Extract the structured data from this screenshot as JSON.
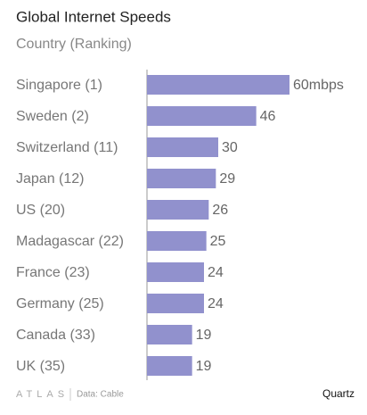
{
  "chart_data": {
    "type": "bar",
    "orientation": "horizontal",
    "title": "Global Internet Speeds",
    "subtitle": "Country (Ranking)",
    "categories": [
      "Singapore (1)",
      "Sweden (2)",
      "Switzerland (11)",
      "Japan (12)",
      "US (20)",
      "Madagascar (22)",
      "France (23)",
      "Germany (25)",
      "Canada (33)",
      "UK (35)"
    ],
    "values": [
      60,
      46,
      30,
      29,
      26,
      25,
      24,
      24,
      19,
      19
    ],
    "value_labels": [
      "60mbps",
      "46",
      "30",
      "29",
      "26",
      "25",
      "24",
      "24",
      "19",
      "19"
    ],
    "color": "#9191cd",
    "xlim": [
      0,
      60
    ],
    "brand": "ATLAS",
    "source": "Data: Cable",
    "credit": "Quartz"
  }
}
